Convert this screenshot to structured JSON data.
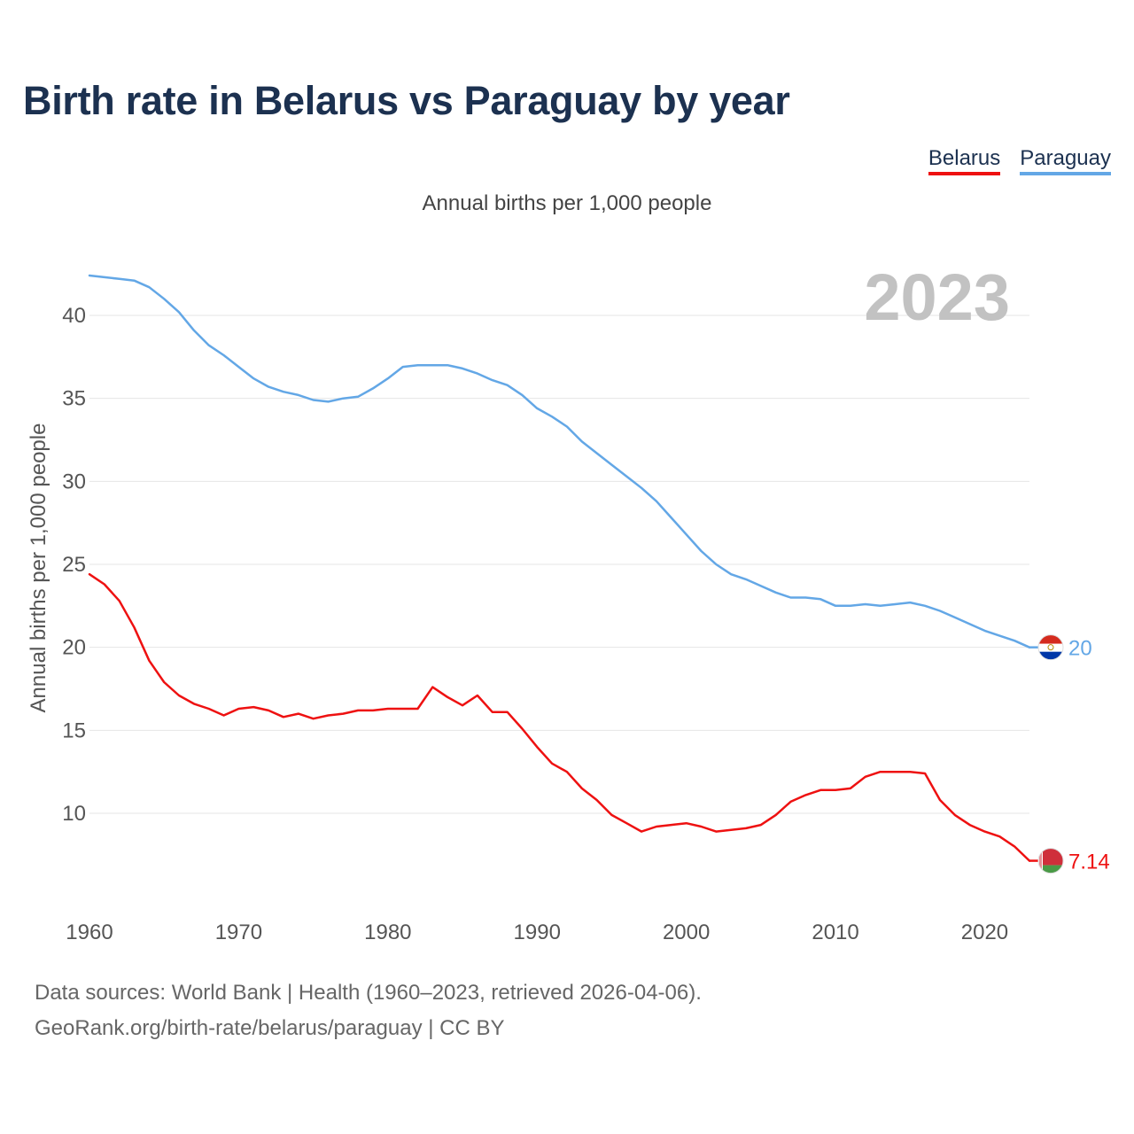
{
  "title": "Birth rate in Belarus vs Paraguay by year",
  "legend": {
    "belarus": "Belarus",
    "paraguay": "Paraguay"
  },
  "subtitle": "Annual births per 1,000 people",
  "year_label": "2023",
  "source": {
    "line1": "Data sources: World Bank | Health (1960–2023, retrieved 2026-04-06).",
    "line2": "GeoRank.org/birth-rate/belarus/paraguay | CC BY"
  },
  "colors": {
    "belarus": "#ee1111",
    "paraguay": "#63a7e6",
    "title": "#1c3150",
    "grid": "#e6e6e6",
    "axis_text": "#555555"
  },
  "chart_data": {
    "type": "line",
    "title": "Birth rate in Belarus vs Paraguay by year",
    "xlabel": "",
    "ylabel": "Annual births per 1,000 people",
    "xlim": [
      1960,
      2023
    ],
    "ylim": [
      5,
      44
    ],
    "xticks": [
      1960,
      1970,
      1980,
      1990,
      2000,
      2010,
      2020
    ],
    "yticks": [
      10,
      15,
      20,
      25,
      30,
      35,
      40
    ],
    "grid": true,
    "legend_position": "top-right",
    "x": [
      1960,
      1961,
      1962,
      1963,
      1964,
      1965,
      1966,
      1967,
      1968,
      1969,
      1970,
      1971,
      1972,
      1973,
      1974,
      1975,
      1976,
      1977,
      1978,
      1979,
      1980,
      1981,
      1982,
      1983,
      1984,
      1985,
      1986,
      1987,
      1988,
      1989,
      1990,
      1991,
      1992,
      1993,
      1994,
      1995,
      1996,
      1997,
      1998,
      1999,
      2000,
      2001,
      2002,
      2003,
      2004,
      2005,
      2006,
      2007,
      2008,
      2009,
      2010,
      2011,
      2012,
      2013,
      2014,
      2015,
      2016,
      2017,
      2018,
      2019,
      2020,
      2021,
      2022,
      2023
    ],
    "series": [
      {
        "name": "Belarus",
        "end_label": "7.14",
        "values": [
          24.4,
          23.8,
          22.8,
          21.2,
          19.2,
          17.9,
          17.1,
          16.6,
          16.3,
          15.9,
          16.3,
          16.4,
          16.2,
          15.8,
          16.0,
          15.7,
          15.9,
          16.0,
          16.2,
          16.2,
          16.3,
          16.3,
          16.3,
          17.6,
          17.0,
          16.5,
          17.1,
          16.1,
          16.1,
          15.1,
          14.0,
          13.0,
          12.5,
          11.5,
          10.8,
          9.9,
          9.4,
          8.9,
          9.2,
          9.3,
          9.4,
          9.2,
          8.9,
          9.0,
          9.1,
          9.3,
          9.9,
          10.7,
          11.1,
          11.4,
          11.4,
          11.5,
          12.2,
          12.5,
          12.5,
          12.5,
          12.4,
          10.8,
          9.9,
          9.3,
          8.9,
          8.6,
          8.0,
          7.14
        ]
      },
      {
        "name": "Paraguay",
        "end_label": "20",
        "values": [
          42.4,
          42.3,
          42.2,
          42.1,
          41.7,
          41.0,
          40.2,
          39.1,
          38.2,
          37.6,
          36.9,
          36.2,
          35.7,
          35.4,
          35.2,
          34.9,
          34.8,
          35.0,
          35.1,
          35.6,
          36.2,
          36.9,
          37.0,
          37.0,
          37.0,
          36.8,
          36.5,
          36.1,
          35.8,
          35.2,
          34.4,
          33.9,
          33.3,
          32.4,
          31.7,
          31.0,
          30.3,
          29.6,
          28.8,
          27.8,
          26.8,
          25.8,
          25.0,
          24.4,
          24.1,
          23.7,
          23.3,
          23.0,
          23.0,
          22.9,
          22.5,
          22.5,
          22.6,
          22.5,
          22.6,
          22.7,
          22.5,
          22.2,
          21.8,
          21.4,
          21.0,
          20.7,
          20.4,
          20.0
        ]
      }
    ]
  }
}
